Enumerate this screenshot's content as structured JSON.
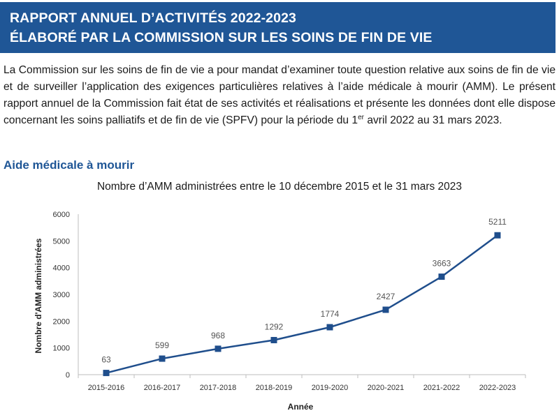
{
  "header": {
    "line1": "RAPPORT ANNUEL D’ACTIVITÉS 2022-2023",
    "line2": "ÉLABORÉ PAR LA COMMISSION SUR LES SOINS DE FIN DE VIE"
  },
  "intro": {
    "text_before_sup": "La Commission sur les soins de fin de vie a pour mandat d’examiner toute question relative aux soins de fin de vie et de surveiller l’application des exigences particulières relatives à l’aide médicale à mourir (AMM). Le présent rapport annuel de la Commission fait état de ses activités et réalisations et présente les données dont elle dispose concernant les soins palliatifs et de fin de vie (SPFV) pour la période du 1",
    "sup": "er",
    "text_after_sup": " avril 2022 au 31 mars 2023."
  },
  "section": {
    "title": "Aide médicale à mourir"
  },
  "colors": {
    "banner": "#1f5696",
    "series": "#1f4e8c",
    "section_title": "#1f5696"
  },
  "chart_data": {
    "type": "line",
    "title": "Nombre d’AMM administrées entre le 10 décembre 2015 et le 31 mars 2023",
    "xlabel": "Année",
    "ylabel": "Nombre d'AMM administrées",
    "categories": [
      "2015-2016",
      "2016-2017",
      "2017-2018",
      "2018-2019",
      "2019-2020",
      "2020-2021",
      "2021-2022",
      "2022-2023"
    ],
    "series": [
      {
        "values": [
          63,
          599,
          968,
          1292,
          1774,
          2427,
          3663,
          5211
        ]
      }
    ],
    "ylim": [
      0,
      6000
    ],
    "yticks": [
      0,
      1000,
      2000,
      3000,
      4000,
      5000,
      6000
    ],
    "data_labels": true,
    "marker": "square",
    "grid": false,
    "legend": "none"
  }
}
